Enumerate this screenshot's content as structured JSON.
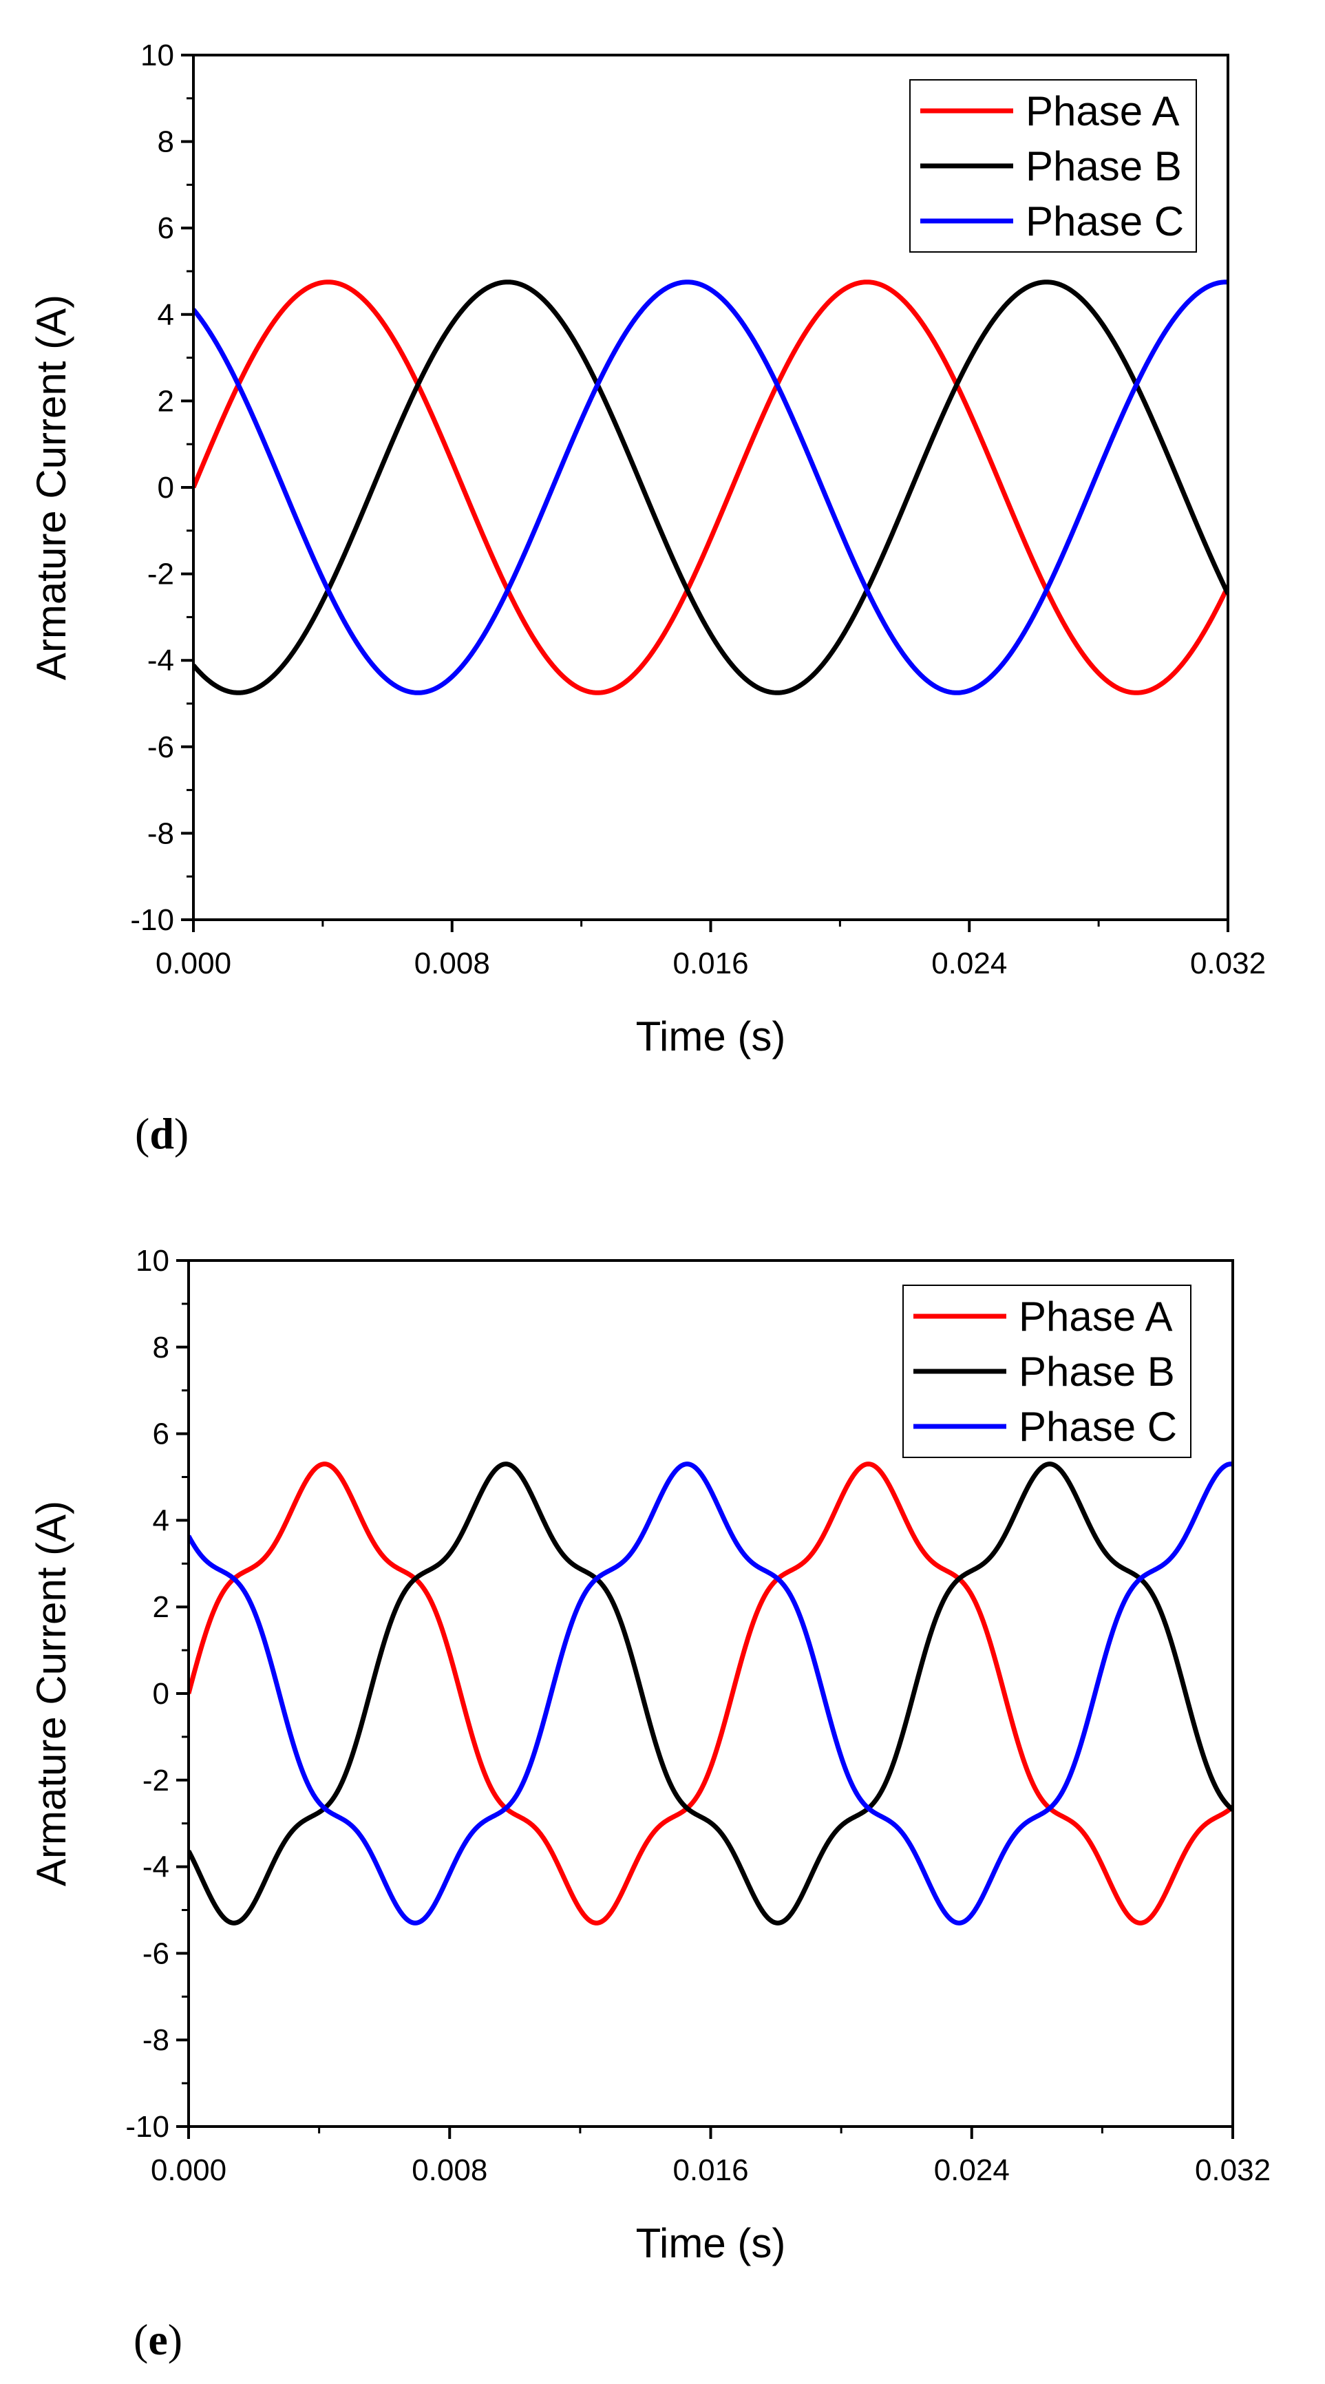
{
  "chart_data": [
    {
      "type": "line",
      "panel_label": "(d)",
      "panel_letter": "d",
      "xlabel": "Time (s)",
      "ylabel": "Armature Current (A)",
      "xlim": [
        0,
        0.032
      ],
      "ylim": [
        -10,
        10
      ],
      "xticks": [
        "0.000",
        "0.008",
        "0.016",
        "0.024",
        "0.032"
      ],
      "yticks": [
        "-10",
        "-8",
        "-6",
        "-4",
        "-2",
        "0",
        "2",
        "4",
        "6",
        "8",
        "10"
      ],
      "legend_position": "top-right",
      "waveform": {
        "amplitude": 4.75,
        "frequency_hz": 60,
        "harmonic_amplitude": 0,
        "harmonic_order": 5
      },
      "series": [
        {
          "name": "Phase A",
          "color": "#ff0000",
          "phase_deg": 0
        },
        {
          "name": "Phase B",
          "color": "#000000",
          "phase_deg": -120
        },
        {
          "name": "Phase C",
          "color": "#0000ff",
          "phase_deg": 120
        }
      ]
    },
    {
      "type": "line",
      "panel_label": "(e)",
      "panel_letter": "e",
      "xlabel": "Time (s)",
      "ylabel": "Armature Current (A)",
      "xlim": [
        0,
        0.032
      ],
      "ylim": [
        -10,
        10
      ],
      "xticks": [
        "0.000",
        "0.008",
        "0.016",
        "0.024",
        "0.032"
      ],
      "yticks": [
        "-10",
        "-8",
        "-6",
        "-4",
        "-2",
        "0",
        "2",
        "4",
        "6",
        "8",
        "10"
      ],
      "legend_position": "top-right",
      "waveform": {
        "amplitude": 4.75,
        "frequency_hz": 60,
        "harmonic_amplitude": 0.55,
        "harmonic_order": 5
      },
      "series": [
        {
          "name": "Phase A",
          "color": "#ff0000",
          "phase_deg": 0
        },
        {
          "name": "Phase B",
          "color": "#000000",
          "phase_deg": -120
        },
        {
          "name": "Phase C",
          "color": "#0000ff",
          "phase_deg": 120
        }
      ]
    }
  ]
}
